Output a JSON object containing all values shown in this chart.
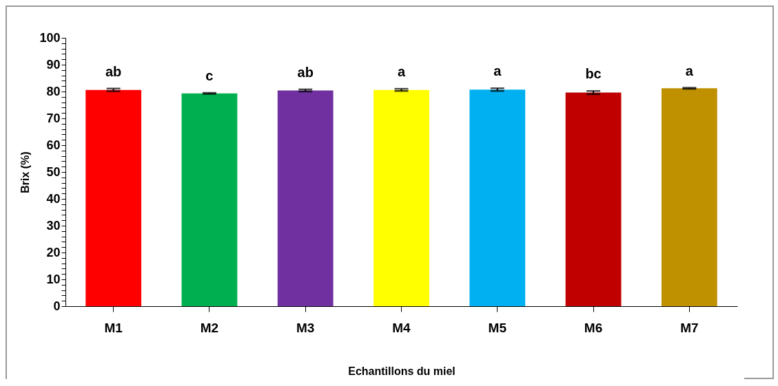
{
  "chart_data": {
    "type": "bar",
    "xlabel": "Echantillons du miel",
    "ylabel": "Brix (%)",
    "categories": [
      "M1",
      "M2",
      "M3",
      "M4",
      "M5",
      "M6",
      "M7"
    ],
    "values": [
      80.6,
      79.3,
      80.4,
      80.6,
      80.7,
      79.6,
      81.2
    ],
    "colors": [
      "#ff0000",
      "#00b050",
      "#7030a0",
      "#ffff00",
      "#00b0f0",
      "#c00000",
      "#bf9000"
    ],
    "errors": [
      0.5,
      0.2,
      0.4,
      0.4,
      0.5,
      0.6,
      0.2
    ],
    "ylim": [
      0,
      100
    ],
    "yticks": [
      0,
      {
        "value": 2,
        "label": null
      },
      {
        "value": 4,
        "label": null
      },
      {
        "value": 6,
        "label": null
      },
      {
        "value": 8,
        "label": null
      },
      10,
      {
        "value": 12,
        "label": null
      },
      {
        "value": 14,
        "label": null
      },
      {
        "value": 16,
        "label": null
      },
      {
        "value": 18,
        "label": null
      },
      20,
      {
        "value": 22,
        "label": null
      },
      {
        "value": 24,
        "label": null
      },
      {
        "value": 26,
        "label": null
      },
      {
        "value": 28,
        "label": null
      },
      30,
      {
        "value": 32,
        "label": null
      },
      {
        "value": 34,
        "label": null
      },
      {
        "value": 36,
        "label": null
      },
      {
        "value": 38,
        "label": null
      },
      40,
      {
        "value": 42,
        "label": null
      },
      {
        "value": 44,
        "label": null
      },
      {
        "value": 46,
        "label": null
      },
      {
        "value": 48,
        "label": null
      },
      50,
      {
        "value": 52,
        "label": null
      },
      {
        "value": 54,
        "label": null
      },
      {
        "value": 56,
        "label": null
      },
      {
        "value": 58,
        "label": null
      },
      60,
      {
        "value": 62,
        "label": null
      },
      {
        "value": 64,
        "label": null
      },
      {
        "value": 66,
        "label": null
      },
      {
        "value": 68,
        "label": null
      },
      70,
      {
        "value": 72,
        "label": null
      },
      {
        "value": 74,
        "label": null
      },
      {
        "value": 76,
        "label": null
      },
      {
        "value": 78,
        "label": null
      },
      80,
      {
        "value": 82,
        "label": null
      },
      {
        "value": 84,
        "label": null
      },
      {
        "value": 86,
        "label": null
      },
      {
        "value": 88,
        "label": null
      },
      90,
      {
        "value": 92,
        "label": null
      },
      {
        "value": 94,
        "label": null
      },
      {
        "value": 96,
        "label": null
      },
      {
        "value": 98,
        "label": null
      },
      100
    ],
    "annotations": [
      "ab",
      "c",
      "ab",
      "a",
      "a",
      "bc",
      "a"
    ],
    "grid": false
  }
}
